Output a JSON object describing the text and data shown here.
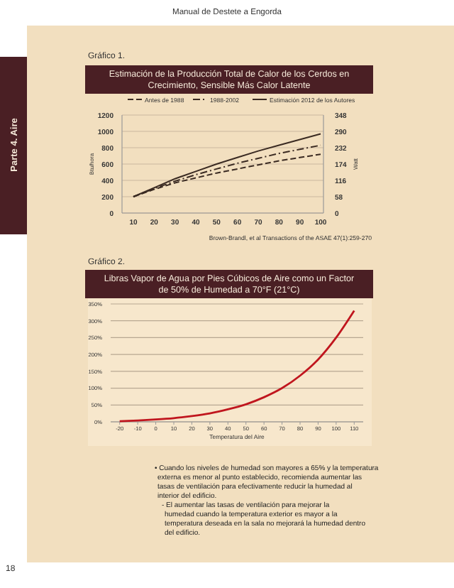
{
  "chart_data": [
    {
      "type": "line",
      "title": "Estimación de la Producción Total de Calor de los Cerdos en Crecimiento, Sensible Más Calor Latente",
      "ylabel": "Btu/hora",
      "y2label": "Watt",
      "categories": [
        "10",
        "20",
        "30",
        "40",
        "50",
        "60",
        "70",
        "80",
        "90",
        "100"
      ],
      "series": [
        {
          "name": "Antes de 1988",
          "color": "#3a2a22",
          "line_style": "dashed",
          "values": [
            200,
            290,
            370,
            430,
            490,
            540,
            590,
            640,
            680,
            720
          ]
        },
        {
          "name": "1988-2002",
          "color": "#3a2a22",
          "line_style": "dashdot",
          "values": [
            200,
            300,
            390,
            470,
            540,
            610,
            670,
            730,
            780,
            830
          ]
        },
        {
          "name": "Estimación 2012 de los Autores",
          "color": "#3a2a22",
          "line_style": "solid",
          "values": [
            200,
            310,
            420,
            510,
            600,
            680,
            760,
            830,
            900,
            970
          ]
        }
      ],
      "ylim": [
        0,
        1200
      ],
      "yticks": [
        0,
        200,
        400,
        600,
        800,
        1000,
        {
          "value": 1200,
          "label": "1200"
        }
      ],
      "y2lim": [
        0,
        348
      ],
      "y2ticks": [
        0,
        58,
        116,
        174,
        232,
        290,
        348
      ],
      "grid": "y",
      "legend": "top",
      "annotations": [
        "Gráfico 1.",
        "Brown-Brandl, et al Transactions of the ASAE 47(1):259-270"
      ]
    },
    {
      "type": "line",
      "title": "Libras Vapor de Agua por Pies Cúbicos de Aire como un Factor de 50% de Humedad a 70°F (21°C)",
      "xlabel": "Temperatura del Aire",
      "x": [
        -20,
        -10,
        0,
        10,
        20,
        30,
        40,
        50,
        60,
        70,
        80,
        90,
        100,
        110
      ],
      "series": [
        {
          "color": "#c0161e",
          "values": [
            2,
            4,
            7,
            11,
            17,
            25,
            37,
            52,
            73,
            100,
            137,
            185,
            250,
            330
          ]
        }
      ],
      "xlim": [
        -25,
        115
      ],
      "xticks": [
        -20,
        -10,
        0,
        10,
        20,
        30,
        40,
        50,
        60,
        70,
        80,
        90,
        100,
        110
      ],
      "ylim": [
        0,
        350
      ],
      "yticks": [
        {
          "value": 0,
          "label": "0%"
        },
        {
          "value": 50,
          "label": "50%"
        },
        {
          "value": 100,
          "label": "100%"
        },
        {
          "value": 150,
          "label": "150%"
        },
        {
          "value": 200,
          "label": "200%"
        },
        {
          "value": 250,
          "label": "250%"
        },
        {
          "value": 300,
          "label": "300%"
        },
        {
          "value": 350,
          "label": "350%"
        }
      ],
      "grid": "y",
      "annotations": [
        "Gráfico 2."
      ]
    },
    {
      "type": "other",
      "title": "Manual de Destete a Engorda",
      "annotations": [
        "Parte 4. Aire",
        "• Cuando los niveles de humedad son mayores a 65% y la temperatura externa es menor al punto establecido, recomienda aumentar las tasas de ventilación para efectivamente reducir la humedad al interior del edificio.",
        "- El aumentar las tasas de ventilación para mejorar la humedad cuando la temperatura exterior es mayor a la temperatura deseada en la sala no mejorará la humedad dentro del edificio.",
        "18"
      ]
    }
  ]
}
